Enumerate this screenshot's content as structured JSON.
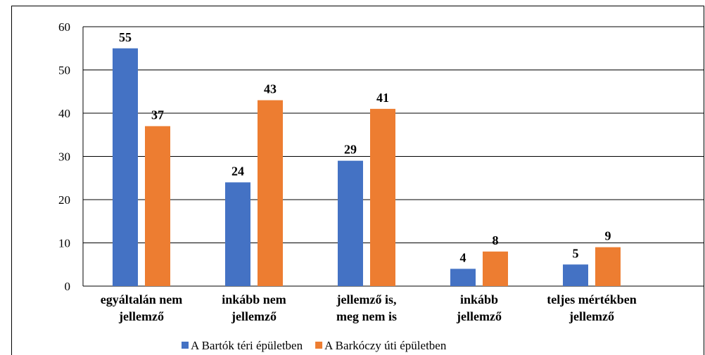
{
  "chart_data": {
    "type": "bar",
    "categories": [
      "egyáltalán nem\njellemző",
      "inkább nem\njellemző",
      "jellemző is,\nmeg nem is",
      "inkább\njellemző",
      "teljes mértékben\njellemző"
    ],
    "series": [
      {
        "name": "A Bartók téri épületben",
        "color": "#4472c4",
        "values": [
          55,
          24,
          29,
          4,
          5
        ]
      },
      {
        "name": "A Barkóczy úti épületben",
        "color": "#ed7d31",
        "values": [
          37,
          43,
          41,
          8,
          9
        ]
      }
    ],
    "ylim": [
      0,
      60
    ],
    "yticks": [
      0,
      10,
      20,
      30,
      40,
      50,
      60
    ],
    "grid": true,
    "legend": "bottom"
  }
}
